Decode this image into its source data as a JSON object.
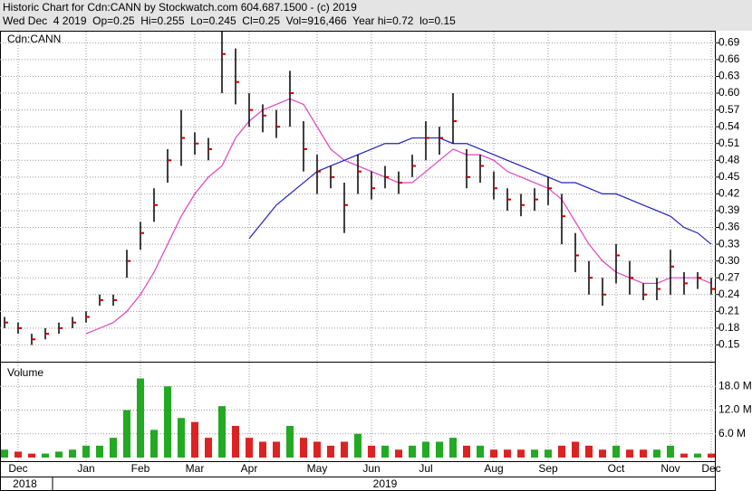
{
  "chart_data": {
    "type": "ohlc",
    "title": "Historic Chart for Cdn:CANN by Stockwatch.com 604.687.1500 - (c) 2019",
    "subtitle": "Wed Dec  4 2019  Op=0.25  Hi=0.255  Lo=0.245  Cl=0.25  Vol=916,466  Year hi=0.72  lo=0.15",
    "symbol": "Cdn:CANN",
    "categories": [
      null,
      "Dec",
      null,
      null,
      null,
      null,
      "Jan",
      null,
      null,
      null,
      "Feb",
      null,
      null,
      null,
      "Mar",
      null,
      null,
      null,
      "Apr",
      null,
      null,
      null,
      null,
      "May",
      null,
      null,
      null,
      "Jun",
      null,
      null,
      null,
      "Jul",
      null,
      null,
      null,
      null,
      "Aug",
      null,
      null,
      null,
      "Sep",
      null,
      null,
      null,
      null,
      "Oct",
      null,
      null,
      null,
      "Nov",
      null,
      null,
      "Dec"
    ],
    "years": [
      {
        "label": "2018",
        "from": 0,
        "to": 3
      },
      {
        "label": "2019",
        "from": 4,
        "to": 52
      }
    ],
    "close": [
      0.19,
      0.18,
      0.16,
      0.17,
      0.18,
      0.19,
      0.2,
      0.23,
      0.23,
      0.3,
      0.35,
      0.4,
      0.48,
      0.52,
      0.51,
      0.5,
      0.67,
      0.62,
      0.57,
      0.56,
      0.54,
      0.6,
      0.5,
      0.46,
      0.45,
      0.4,
      0.46,
      0.43,
      0.45,
      0.44,
      0.47,
      0.52,
      0.52,
      0.55,
      0.45,
      0.47,
      0.43,
      0.41,
      0.4,
      0.41,
      0.43,
      0.38,
      0.31,
      0.27,
      0.24,
      0.31,
      0.27,
      0.24,
      0.25,
      0.29,
      0.26,
      0.27,
      0.25
    ],
    "high": [
      0.2,
      0.19,
      0.17,
      0.18,
      0.19,
      0.2,
      0.21,
      0.24,
      0.24,
      0.32,
      0.37,
      0.43,
      0.5,
      0.57,
      0.53,
      0.52,
      0.71,
      0.68,
      0.6,
      0.58,
      0.57,
      0.64,
      0.55,
      0.49,
      0.47,
      0.44,
      0.49,
      0.46,
      0.47,
      0.46,
      0.49,
      0.55,
      0.54,
      0.6,
      0.5,
      0.49,
      0.46,
      0.43,
      0.42,
      0.43,
      0.45,
      0.42,
      0.35,
      0.3,
      0.27,
      0.33,
      0.3,
      0.26,
      0.27,
      0.32,
      0.28,
      0.28,
      0.27
    ],
    "low": [
      0.18,
      0.17,
      0.15,
      0.16,
      0.17,
      0.18,
      0.19,
      0.22,
      0.22,
      0.27,
      0.32,
      0.37,
      0.44,
      0.47,
      0.49,
      0.48,
      0.6,
      0.58,
      0.54,
      0.53,
      0.52,
      0.54,
      0.46,
      0.42,
      0.43,
      0.35,
      0.42,
      0.41,
      0.43,
      0.42,
      0.45,
      0.48,
      0.49,
      0.51,
      0.43,
      0.44,
      0.41,
      0.39,
      0.38,
      0.39,
      0.4,
      0.33,
      0.28,
      0.24,
      0.22,
      0.26,
      0.24,
      0.23,
      0.23,
      0.24,
      0.24,
      0.25,
      0.24
    ],
    "color": "#000000",
    "close_color": "#cc0000",
    "moving_averages": [
      {
        "color": "#e040c0",
        "values": [
          null,
          null,
          null,
          null,
          null,
          null,
          0.17,
          0.18,
          0.19,
          0.21,
          0.24,
          0.28,
          0.33,
          0.38,
          0.42,
          0.45,
          0.47,
          0.52,
          0.55,
          0.57,
          0.58,
          0.59,
          0.58,
          0.54,
          0.5,
          0.48,
          0.47,
          0.46,
          0.45,
          0.44,
          0.44,
          0.46,
          0.48,
          0.5,
          0.49,
          0.49,
          0.48,
          0.46,
          0.45,
          0.44,
          0.43,
          0.41,
          0.37,
          0.33,
          0.3,
          0.28,
          0.27,
          0.26,
          0.26,
          0.27,
          0.27,
          0.27,
          0.26
        ]
      },
      {
        "color": "#2020c0",
        "values": [
          null,
          null,
          null,
          null,
          null,
          null,
          null,
          null,
          null,
          null,
          null,
          null,
          null,
          null,
          null,
          null,
          null,
          null,
          0.34,
          0.37,
          0.4,
          0.42,
          0.44,
          0.46,
          0.47,
          0.48,
          0.49,
          0.5,
          0.51,
          0.51,
          0.52,
          0.52,
          0.52,
          0.51,
          0.51,
          0.5,
          0.49,
          0.48,
          0.47,
          0.46,
          0.45,
          0.44,
          0.44,
          0.43,
          0.42,
          0.42,
          0.41,
          0.4,
          0.39,
          0.38,
          0.36,
          0.35,
          0.33
        ]
      }
    ],
    "ylim": [
      0.12,
      0.71
    ],
    "yticks": [
      0.15,
      0.18,
      0.21,
      0.24,
      0.27,
      {
        "value": 0.3,
        "label": "0.30"
      },
      0.33,
      0.36,
      0.39,
      0.42,
      0.45,
      0.48,
      0.51,
      0.54,
      0.57,
      {
        "value": 0.6,
        "label": "0.60"
      },
      0.63,
      0.66,
      0.69
    ],
    "grid": true,
    "volume": {
      "label": "Volume",
      "up_color": "#22aa22",
      "down_color": "#dd2222",
      "values": [
        2,
        1.5,
        1,
        1,
        1.5,
        2,
        3,
        3,
        5,
        12,
        20,
        7,
        18,
        10,
        9,
        5,
        13,
        8,
        5,
        4,
        4,
        8,
        5,
        4,
        3,
        4,
        6,
        3,
        3,
        2,
        3,
        4,
        4,
        5,
        3,
        3,
        2,
        2,
        2,
        2,
        2,
        3,
        4,
        3,
        2,
        3,
        2,
        2,
        2,
        3,
        1,
        1,
        1
      ],
      "ylim": [
        0,
        24
      ],
      "yticks": [
        {
          "value": 6,
          "label": "6.0 M"
        },
        {
          "value": 12,
          "label": "12.0 M"
        },
        {
          "value": 18,
          "label": "18.0 M"
        }
      ]
    }
  }
}
